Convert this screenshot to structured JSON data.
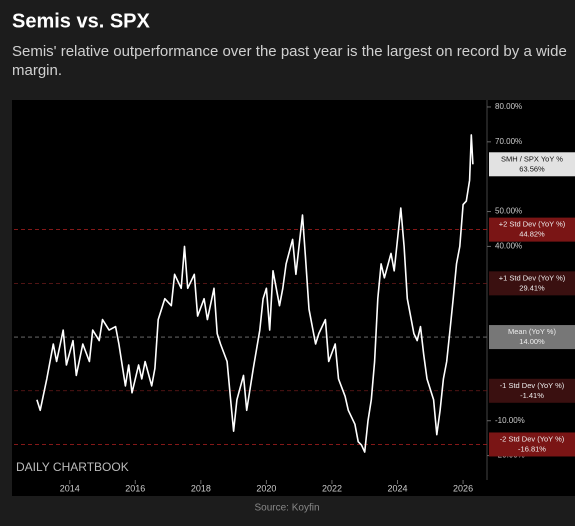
{
  "chart_data": {
    "type": "line",
    "title": "Semis vs. SPX",
    "subtitle": "Semis' relative outperformance over the past year is the largest on record by a wide margin.",
    "source": "Source: Koyfin",
    "watermark": "DAILY CHARTBOOK",
    "color": "#ffffff",
    "x": [
      2013.0,
      2013.1,
      2013.3,
      2013.5,
      2013.6,
      2013.8,
      2013.9,
      2014.1,
      2014.2,
      2014.4,
      2014.6,
      2014.7,
      2014.9,
      2015.0,
      2015.2,
      2015.4,
      2015.5,
      2015.7,
      2015.8,
      2015.9,
      2016.1,
      2016.2,
      2016.3,
      2016.5,
      2016.6,
      2016.7,
      2016.9,
      2017.1,
      2017.2,
      2017.4,
      2017.5,
      2017.6,
      2017.8,
      2017.9,
      2018.1,
      2018.2,
      2018.4,
      2018.5,
      2018.6,
      2018.8,
      2018.9,
      2019.0,
      2019.1,
      2019.3,
      2019.4,
      2019.6,
      2019.8,
      2019.9,
      2020.0,
      2020.1,
      2020.2,
      2020.4,
      2020.5,
      2020.6,
      2020.8,
      2020.9,
      2021.1,
      2021.2,
      2021.3,
      2021.5,
      2021.6,
      2021.8,
      2021.9,
      2022.1,
      2022.2,
      2022.4,
      2022.5,
      2022.7,
      2022.8,
      2022.9,
      2023.0,
      2023.1,
      2023.2,
      2023.3,
      2023.4,
      2023.5,
      2023.6,
      2023.8,
      2023.9,
      2024.1,
      2024.2,
      2024.3,
      2024.5,
      2024.6,
      2024.7,
      2024.8,
      2024.9,
      2025.1,
      2025.2,
      2025.3,
      2025.4,
      2025.5,
      2025.6,
      2025.7,
      2025.8,
      2025.9,
      2026.0,
      2026.1,
      2026.2,
      2026.25,
      2026.3
    ],
    "values": [
      -4,
      -7,
      2,
      12,
      7,
      16,
      6,
      13,
      3,
      12,
      7,
      16,
      13,
      19,
      16,
      17,
      12,
      0,
      6,
      -2,
      6,
      2,
      7,
      0,
      5,
      19,
      25,
      23,
      32,
      28,
      40,
      28,
      32,
      20,
      25,
      19,
      28,
      15,
      12,
      7,
      -3,
      -13,
      -4,
      3,
      -7,
      5,
      16,
      25,
      28,
      16,
      33,
      23,
      28,
      35,
      42,
      32,
      49,
      36,
      22,
      12,
      15,
      19,
      7,
      12,
      2,
      -3,
      -7,
      -11,
      -16,
      -17,
      -19,
      -10,
      -4,
      7,
      25,
      35,
      31,
      38,
      33,
      51,
      40,
      25,
      15,
      13,
      17,
      9,
      2,
      -4,
      -14,
      -7,
      2,
      7,
      16,
      25,
      35,
      40,
      52,
      53,
      59,
      72,
      63.56
    ],
    "xlim": [
      2012.3,
      2026.73
    ],
    "ylim": [
      -27,
      82
    ],
    "xticks": [
      2014,
      2016,
      2018,
      2020,
      2022,
      2024,
      2026
    ],
    "yticks": [
      {
        "value": 80,
        "label": "80.00%"
      },
      {
        "value": 70,
        "label": "70.00%"
      },
      {
        "value": 50,
        "label": "50.00%"
      },
      {
        "value": 40,
        "label": "40.00%"
      },
      {
        "value": -10,
        "label": "-10.00%"
      },
      {
        "value": -20,
        "label": "-20.00%"
      }
    ],
    "reference_lines": [
      {
        "label": "+2 Std Dev (YoY %)",
        "value": 44.82,
        "value_label": "44.82%",
        "color": "#b02020",
        "box": "#7a1515"
      },
      {
        "label": "+1 Std Dev (YoY %)",
        "value": 29.41,
        "value_label": "29.41%",
        "color": "#6a1a1a",
        "box": "#3a1010"
      },
      {
        "label": "Mean (YoY %)",
        "value": 14.0,
        "value_label": "14.00%",
        "color": "#777777",
        "box": "#777777"
      },
      {
        "label": "-1 Std Dev (YoY %)",
        "value": -1.41,
        "value_label": "-1.41%",
        "color": "#6a1a1a",
        "box": "#3a1010"
      },
      {
        "label": "-2 Std Dev (YoY %)",
        "value": -16.81,
        "value_label": "-16.81%",
        "color": "#b02020",
        "box": "#7a1515"
      }
    ],
    "current": {
      "label": "SMH / SPX YoY %",
      "value": 63.56,
      "value_label": "63.56%"
    }
  }
}
